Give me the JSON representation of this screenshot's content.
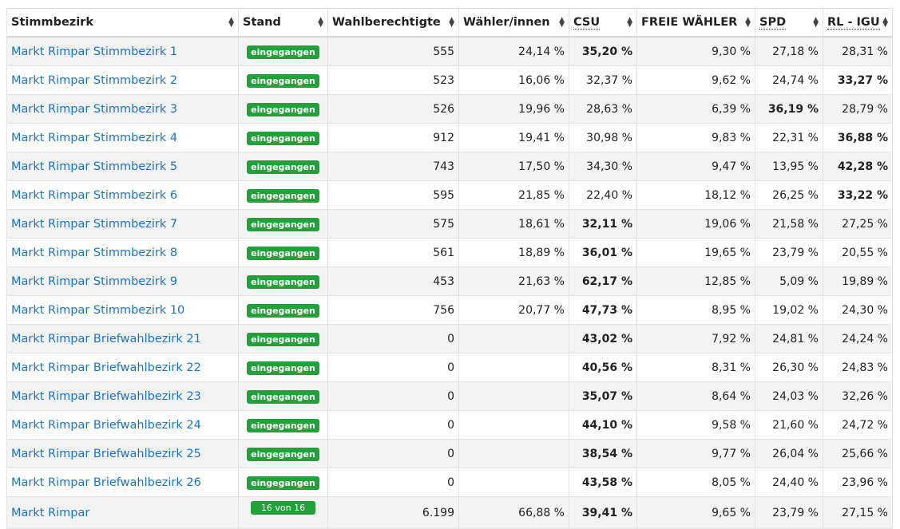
{
  "table": {
    "headers": [
      {
        "label": "Stimmbezirk",
        "abbr": false
      },
      {
        "label": "Stand",
        "abbr": false
      },
      {
        "label": "Wahlberechtigte",
        "abbr": false
      },
      {
        "label": "Wähler/innen",
        "abbr": false
      },
      {
        "label": "CSU",
        "abbr": true
      },
      {
        "label": "FREIE WÄHLER",
        "abbr": false
      },
      {
        "label": "SPD",
        "abbr": true
      },
      {
        "label": "RL - IGU",
        "abbr": true
      }
    ],
    "rows": [
      {
        "name": "Markt Rimpar Stimmbezirk 1",
        "stand": "eingegangen",
        "wahlberechtigte": "555",
        "waehler": "24,14 %",
        "csu": "35,20 %",
        "fw": "9,30 %",
        "spd": "27,18 %",
        "rl": "28,31 %",
        "bold": "csu"
      },
      {
        "name": "Markt Rimpar Stimmbezirk 2",
        "stand": "eingegangen",
        "wahlberechtigte": "523",
        "waehler": "16,06 %",
        "csu": "32,37 %",
        "fw": "9,62 %",
        "spd": "24,74 %",
        "rl": "33,27 %",
        "bold": "rl"
      },
      {
        "name": "Markt Rimpar Stimmbezirk 3",
        "stand": "eingegangen",
        "wahlberechtigte": "526",
        "waehler": "19,96 %",
        "csu": "28,63 %",
        "fw": "6,39 %",
        "spd": "36,19 %",
        "rl": "28,79 %",
        "bold": "spd"
      },
      {
        "name": "Markt Rimpar Stimmbezirk 4",
        "stand": "eingegangen",
        "wahlberechtigte": "912",
        "waehler": "19,41 %",
        "csu": "30,98 %",
        "fw": "9,83 %",
        "spd": "22,31 %",
        "rl": "36,88 %",
        "bold": "rl"
      },
      {
        "name": "Markt Rimpar Stimmbezirk 5",
        "stand": "eingegangen",
        "wahlberechtigte": "743",
        "waehler": "17,50 %",
        "csu": "34,30 %",
        "fw": "9,47 %",
        "spd": "13,95 %",
        "rl": "42,28 %",
        "bold": "rl"
      },
      {
        "name": "Markt Rimpar Stimmbezirk 6",
        "stand": "eingegangen",
        "wahlberechtigte": "595",
        "waehler": "21,85 %",
        "csu": "22,40 %",
        "fw": "18,12 %",
        "spd": "26,25 %",
        "rl": "33,22 %",
        "bold": "rl"
      },
      {
        "name": "Markt Rimpar Stimmbezirk 7",
        "stand": "eingegangen",
        "wahlberechtigte": "575",
        "waehler": "18,61 %",
        "csu": "32,11 %",
        "fw": "19,06 %",
        "spd": "21,58 %",
        "rl": "27,25 %",
        "bold": "csu"
      },
      {
        "name": "Markt Rimpar Stimmbezirk 8",
        "stand": "eingegangen",
        "wahlberechtigte": "561",
        "waehler": "18,89 %",
        "csu": "36,01 %",
        "fw": "19,65 %",
        "spd": "23,79 %",
        "rl": "20,55 %",
        "bold": "csu"
      },
      {
        "name": "Markt Rimpar Stimmbezirk 9",
        "stand": "eingegangen",
        "wahlberechtigte": "453",
        "waehler": "21,63 %",
        "csu": "62,17 %",
        "fw": "12,85 %",
        "spd": "5,09 %",
        "rl": "19,89 %",
        "bold": "csu"
      },
      {
        "name": "Markt Rimpar Stimmbezirk 10",
        "stand": "eingegangen",
        "wahlberechtigte": "756",
        "waehler": "20,77 %",
        "csu": "47,73 %",
        "fw": "8,95 %",
        "spd": "19,02 %",
        "rl": "24,30 %",
        "bold": "csu"
      },
      {
        "name": "Markt Rimpar Briefwahlbezirk 21",
        "stand": "eingegangen",
        "wahlberechtigte": "0",
        "waehler": "",
        "csu": "43,02 %",
        "fw": "7,92 %",
        "spd": "24,81 %",
        "rl": "24,24 %",
        "bold": "csu"
      },
      {
        "name": "Markt Rimpar Briefwahlbezirk 22",
        "stand": "eingegangen",
        "wahlberechtigte": "0",
        "waehler": "",
        "csu": "40,56 %",
        "fw": "8,31 %",
        "spd": "26,30 %",
        "rl": "24,83 %",
        "bold": "csu"
      },
      {
        "name": "Markt Rimpar Briefwahlbezirk 23",
        "stand": "eingegangen",
        "wahlberechtigte": "0",
        "waehler": "",
        "csu": "35,07 %",
        "fw": "8,64 %",
        "spd": "24,03 %",
        "rl": "32,26 %",
        "bold": "csu"
      },
      {
        "name": "Markt Rimpar Briefwahlbezirk 24",
        "stand": "eingegangen",
        "wahlberechtigte": "0",
        "waehler": "",
        "csu": "44,10 %",
        "fw": "9,58 %",
        "spd": "21,60 %",
        "rl": "24,72 %",
        "bold": "csu"
      },
      {
        "name": "Markt Rimpar Briefwahlbezirk 25",
        "stand": "eingegangen",
        "wahlberechtigte": "0",
        "waehler": "",
        "csu": "38,54 %",
        "fw": "9,77 %",
        "spd": "26,04 %",
        "rl": "25,66 %",
        "bold": "csu"
      },
      {
        "name": "Markt Rimpar Briefwahlbezirk 26",
        "stand": "eingegangen",
        "wahlberechtigte": "0",
        "waehler": "",
        "csu": "43,58 %",
        "fw": "8,05 %",
        "spd": "24,40 %",
        "rl": "23,96 %",
        "bold": "csu"
      }
    ],
    "total": {
      "name": "Markt Rimpar",
      "stand": "16 von 16",
      "wahlberechtigte": "6.199",
      "waehler": "66,88 %",
      "csu": "39,41 %",
      "fw": "9,65 %",
      "spd": "23,79 %",
      "rl": "27,15 %",
      "bold": "csu"
    }
  },
  "colors": {
    "link": "#1a73c9",
    "badge": "#22a03a",
    "stripe": "#f3f3f3"
  },
  "icons": {
    "sort": "sort-updown-icon"
  }
}
